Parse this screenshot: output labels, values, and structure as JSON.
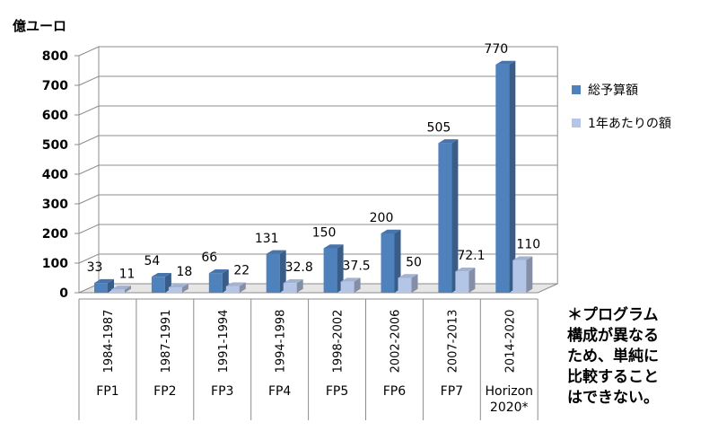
{
  "chart_data": {
    "type": "bar",
    "unit_label": "億ユーロ",
    "ylim": [
      0,
      800
    ],
    "yticks": [
      0,
      100,
      200,
      300,
      400,
      500,
      600,
      700,
      800
    ],
    "grid": true,
    "legend_position": "right",
    "categories": [
      {
        "period": "1984-1987",
        "program": [
          "FP1"
        ]
      },
      {
        "period": "1987-1991",
        "program": [
          "FP2"
        ]
      },
      {
        "period": "1991-1994",
        "program": [
          "FP3"
        ]
      },
      {
        "period": "1994-1998",
        "program": [
          "FP4"
        ]
      },
      {
        "period": "1998-2002",
        "program": [
          "FP5"
        ]
      },
      {
        "period": "2002-2006",
        "program": [
          "FP6"
        ]
      },
      {
        "period": "2007-2013",
        "program": [
          "FP7"
        ]
      },
      {
        "period": "2014-2020",
        "program": [
          "Horizon",
          "2020*"
        ]
      }
    ],
    "series": [
      {
        "name": "総予算額",
        "color": "#4f81bd",
        "values": [
          33,
          54,
          66,
          131,
          150,
          200,
          505,
          770
        ],
        "labels": [
          "33",
          "54",
          "66",
          "131",
          "150",
          "200",
          "505",
          "770"
        ]
      },
      {
        "name": "1年あたりの額",
        "color": "#b4c6e7",
        "values": [
          11,
          18,
          22,
          32.8,
          37.5,
          50,
          72.1,
          110
        ],
        "labels": [
          "11",
          "18",
          "22",
          "32.8",
          "37.5",
          "50",
          "72.1",
          "110"
        ]
      }
    ]
  },
  "note": {
    "lines": [
      "＊プログラム",
      "構成が異なる",
      "ため、単純に",
      "比較すること",
      "はできない。"
    ]
  }
}
